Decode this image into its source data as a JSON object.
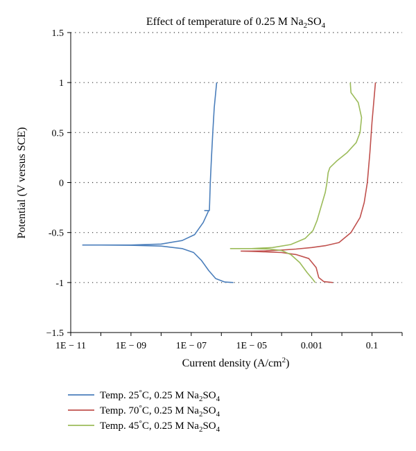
{
  "chart_data": {
    "type": "line",
    "title": {
      "main": "Effect of temperature of 0.25 M Na",
      "sub": "2",
      "mid": "SO",
      "sub2": "4"
    },
    "xlabel": {
      "main": "Current density (A/cm",
      "sup": "2",
      "end": ")"
    },
    "ylabel": "Potential (V versus SCE)",
    "x_scale": "log",
    "xlim": [
      1e-11,
      1
    ],
    "ylim": [
      -1.5,
      1.5
    ],
    "grid": "horizontal-dotted",
    "legend_position": "bottom",
    "x_ticks": [
      {
        "value": 1e-11,
        "label": "1E − 11"
      },
      {
        "value": 1e-09,
        "label": "1E − 09"
      },
      {
        "value": 1e-07,
        "label": "1E − 07"
      },
      {
        "value": 1e-05,
        "label": "1E − 05"
      },
      {
        "value": 0.001,
        "label": "0.001"
      },
      {
        "value": 0.1,
        "label": "0.1"
      }
    ],
    "y_ticks": [
      {
        "value": 1.5,
        "label": "1.5"
      },
      {
        "value": 1,
        "label": "1"
      },
      {
        "value": 0.5,
        "label": "0.5"
      },
      {
        "value": 0,
        "label": "0"
      },
      {
        "value": -0.5,
        "label": "-0.5"
      },
      {
        "value": -1,
        "label": "-1"
      },
      {
        "value": -1.5,
        "label": "−1.5"
      }
    ],
    "series": [
      {
        "name": "Temp. 25°C, 0.25 M Na2SO4",
        "legend": {
          "main": "Temp. 25",
          "deg": "°",
          "rest": "C, 0.25 M Na",
          "sub": "2",
          "mid": "SO",
          "sub2": "4"
        },
        "color": "#4a7ebb",
        "points": [
          [
            7e-07,
            1.0
          ],
          [
            6.5e-07,
            0.9
          ],
          [
            5.8e-07,
            0.75
          ],
          [
            5.2e-07,
            0.5
          ],
          [
            4.7e-07,
            0.25
          ],
          [
            4.3e-07,
            0.0
          ],
          [
            4.1e-07,
            -0.2
          ],
          [
            4e-07,
            -0.28
          ],
          [
            3.3e-07,
            -0.28
          ],
          [
            2.8e-07,
            -0.28
          ],
          [
            3.8e-07,
            -0.28
          ],
          [
            2.5e-07,
            -0.4
          ],
          [
            1.3e-07,
            -0.52
          ],
          [
            5e-08,
            -0.58
          ],
          [
            1e-08,
            -0.615
          ],
          [
            1e-09,
            -0.625
          ],
          [
            1e-10,
            -0.625
          ],
          [
            2.5e-11,
            -0.625
          ],
          [
            1e-10,
            -0.625
          ],
          [
            1e-09,
            -0.628
          ],
          [
            1e-08,
            -0.635
          ],
          [
            5e-08,
            -0.66
          ],
          [
            1.2e-07,
            -0.7
          ],
          [
            2.2e-07,
            -0.78
          ],
          [
            3.8e-07,
            -0.88
          ],
          [
            6.5e-07,
            -0.96
          ],
          [
            1.3e-06,
            -0.995
          ],
          [
            2.5e-06,
            -1.0
          ]
        ]
      },
      {
        "name": "Temp. 70°C, 0.25 M Na2SO4",
        "legend": {
          "main": "Temp. 70",
          "deg": "°",
          "rest": "C, 0.25 M Na",
          "sub": "2",
          "mid": "SO",
          "sub2": "4"
        },
        "color": "#c0504d",
        "points": [
          [
            0.13,
            1.0
          ],
          [
            0.1,
            0.6
          ],
          [
            0.085,
            0.3
          ],
          [
            0.07,
            0.0
          ],
          [
            0.055,
            -0.2
          ],
          [
            0.04,
            -0.35
          ],
          [
            0.02,
            -0.5
          ],
          [
            0.008,
            -0.6
          ],
          [
            0.003,
            -0.63
          ],
          [
            0.001,
            -0.65
          ],
          [
            0.0003,
            -0.665
          ],
          [
            0.0001,
            -0.675
          ],
          [
            3e-05,
            -0.683
          ],
          [
            1e-05,
            -0.685
          ],
          [
            4.5e-06,
            -0.685
          ],
          [
            1e-05,
            -0.688
          ],
          [
            4e-05,
            -0.695
          ],
          [
            0.0001,
            -0.7
          ],
          [
            0.0003,
            -0.72
          ],
          [
            0.0008,
            -0.76
          ],
          [
            0.0014,
            -0.85
          ],
          [
            0.0017,
            -0.95
          ],
          [
            0.0025,
            -0.99
          ],
          [
            0.005,
            -1.0
          ]
        ]
      },
      {
        "name": "Temp. 45°C, 0.25 M Na2SO4",
        "legend": {
          "main": "Temp. 45",
          "deg": "°",
          "rest": "C, 0.25 M Na",
          "sub": "2",
          "mid": "SO",
          "sub2": "4"
        },
        "color": "#9bbb59",
        "points": [
          [
            0.019,
            1.0
          ],
          [
            0.02,
            0.9
          ],
          [
            0.035,
            0.8
          ],
          [
            0.045,
            0.65
          ],
          [
            0.04,
            0.5
          ],
          [
            0.03,
            0.4
          ],
          [
            0.015,
            0.3
          ],
          [
            0.007,
            0.22
          ],
          [
            0.004,
            0.15
          ],
          [
            0.0035,
            0.1
          ],
          [
            0.0032,
            0.0
          ],
          [
            0.0028,
            -0.1
          ],
          [
            0.002,
            -0.25
          ],
          [
            0.0015,
            -0.38
          ],
          [
            0.0011,
            -0.48
          ],
          [
            0.0006,
            -0.56
          ],
          [
            0.0002,
            -0.62
          ],
          [
            5e-05,
            -0.65
          ],
          [
            1e-05,
            -0.66
          ],
          [
            2e-06,
            -0.66
          ],
          [
            1e-05,
            -0.66
          ],
          [
            4e-05,
            -0.665
          ],
          [
            0.0001,
            -0.68
          ],
          [
            0.0002,
            -0.72
          ],
          [
            0.0004,
            -0.8
          ],
          [
            0.0007,
            -0.9
          ],
          [
            0.0011,
            -0.97
          ],
          [
            0.0013,
            -1.0
          ]
        ]
      }
    ]
  }
}
